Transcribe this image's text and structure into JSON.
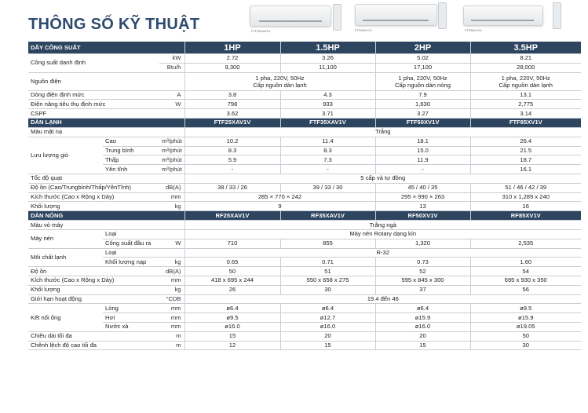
{
  "title": "THÔNG SỐ KỸ THUẬT",
  "product_captions": [
    "FTF25XAV1V",
    "FTF50XV1V",
    "FTF85XV1V"
  ],
  "header": {
    "label": "DÃY CÔNG SUẤT",
    "cols": [
      "1HP",
      "1.5HP",
      "2HP",
      "3.5HP"
    ]
  },
  "rows": {
    "cong_suat": {
      "label": "Công suất danh định",
      "u1": "kW",
      "u2": "Btu/h",
      "kw": [
        "2.72",
        "3.26",
        "5.02",
        "8.21"
      ],
      "btu": [
        "9,300",
        "11,100",
        "17,100",
        "28,000"
      ]
    },
    "nguon_dien": {
      "label": "Nguồn điện",
      "v12": "1 pha, 220V, 50Hz\nCấp nguồn dàn lạnh",
      "v3": "1 pha, 220V, 50Hz\nCấp nguồn dàn nóng",
      "v4": "1 pha, 220V, 50Hz\nCấp nguồn dàn lạnh"
    },
    "dong_dien": {
      "label": "Dòng điện định mức",
      "unit": "A",
      "v": [
        "3.8",
        "4.3",
        "7.9",
        "13.1"
      ]
    },
    "dien_nang": {
      "label": "Điện năng tiêu thụ định mức",
      "unit": "W",
      "v": [
        "798",
        "933",
        "1,630",
        "2,775"
      ]
    },
    "cspf": {
      "label": "CSPF",
      "v": [
        "3.62",
        "3.71",
        "3.27",
        "3.14"
      ]
    }
  },
  "indoor": {
    "label": "DÀN LẠNH",
    "models": [
      "FTF25XAV1V",
      "FTF35XAV1V",
      "FTF50XV1V",
      "FTF85XV1V"
    ],
    "mau_mat_na": {
      "label": "Màu mặt nạ",
      "v": "Trắng"
    },
    "luu_luong": {
      "label": "Lưu lượng gió",
      "unit": "m³/phút",
      "rows": [
        {
          "name": "Cao",
          "v": [
            "10.2",
            "11.4",
            "18.1",
            "26.4"
          ]
        },
        {
          "name": "Trung bình",
          "v": [
            "8.3",
            "8.3",
            "15.0",
            "21.5"
          ]
        },
        {
          "name": "Thấp",
          "v": [
            "5.9",
            "7.3",
            "11.9",
            "18.7"
          ]
        },
        {
          "name": "Yên tĩnh",
          "v": [
            "-",
            "-",
            "-",
            "16.1"
          ]
        }
      ]
    },
    "toc_do": {
      "label": "Tốc độ quạt",
      "v": "5 cấp và tự động"
    },
    "do_on": {
      "label": "Độ ồn (Cao/Trungbình/Thấp/YênTĩnh)",
      "unit": "dB(A)",
      "v": [
        "38 / 33 / 26",
        "39 / 33 / 30",
        "45 / 40 / 35",
        "51 / 46 / 42 / 39"
      ]
    },
    "kich_thuoc": {
      "label": "Kích thước (Cao x Rộng x Dày)",
      "unit": "mm",
      "v12": "285 × 770 × 242",
      "v3": "295 × 990 × 263",
      "v4": "310 x 1,289 x 240"
    },
    "khoi_luong": {
      "label": "Khối lượng",
      "unit": "kg",
      "v12": "9",
      "v3": "13",
      "v4": "16"
    }
  },
  "outdoor": {
    "label": "DÀN NÓNG",
    "models": [
      "RF25XAV1V",
      "RF35XAV1V",
      "RF50XV1V",
      "RF85XV1V"
    ],
    "mau_vo": {
      "label": "Màu vỏ máy",
      "v": "Trắng ngà"
    },
    "may_nen": {
      "label": "Máy nén",
      "loai": "Loại",
      "loai_v": "Máy nén Rotary dạng kín",
      "cs": "Công suất đầu ra",
      "cs_unit": "W",
      "cs_v": [
        "710",
        "855",
        "1,320",
        "2,535"
      ]
    },
    "moi_chat": {
      "label": "Môi chất lạnh",
      "loai": "Loại",
      "loai_v": "R-32",
      "kl": "Khối lượng nạp",
      "kl_unit": "kg",
      "kl_v": [
        "0.65",
        "0.71",
        "0.73",
        "1.60"
      ]
    },
    "do_on": {
      "label": "Độ ồn",
      "unit": "dB(A)",
      "v": [
        "50",
        "51",
        "52",
        "54"
      ]
    },
    "kich_thuoc": {
      "label": "Kích thước (Cao x Rộng x Dày)",
      "unit": "mm",
      "v": [
        "418 x 695 x 244",
        "550 x 658 x 275",
        "595 x 845 x 300",
        "695 x 930 x 350"
      ]
    },
    "khoi_luong": {
      "label": "Khối lượng",
      "unit": "kg",
      "v": [
        "26",
        "30",
        "37",
        "56"
      ]
    },
    "gioi_han": {
      "label": "Giới hạn hoạt động",
      "unit": "°CDB",
      "v": "19.4 đến 46"
    },
    "ket_noi": {
      "label": "Kết nối ống",
      "unit": "mm",
      "rows": [
        {
          "name": "Lỏng",
          "v": [
            "ø6.4",
            "ø6.4",
            "ø6.4",
            "ø9.5"
          ]
        },
        {
          "name": "Hơi",
          "v": [
            "ø9.5",
            "ø12.7",
            "ø15.9",
            "ø15.9"
          ]
        },
        {
          "name": "Nước xả",
          "v": [
            "ø16.0",
            "ø16.0",
            "ø16.0",
            "ø19.05"
          ]
        }
      ]
    },
    "chieu_dai": {
      "label": "Chiều dài tối đa",
      "unit": "m",
      "v": [
        "15",
        "20",
        "20",
        "50"
      ]
    },
    "chenh_lech": {
      "label": "Chênh lệch độ cao tối đa",
      "unit": "m",
      "v": [
        "12",
        "15",
        "15",
        "30"
      ]
    }
  }
}
